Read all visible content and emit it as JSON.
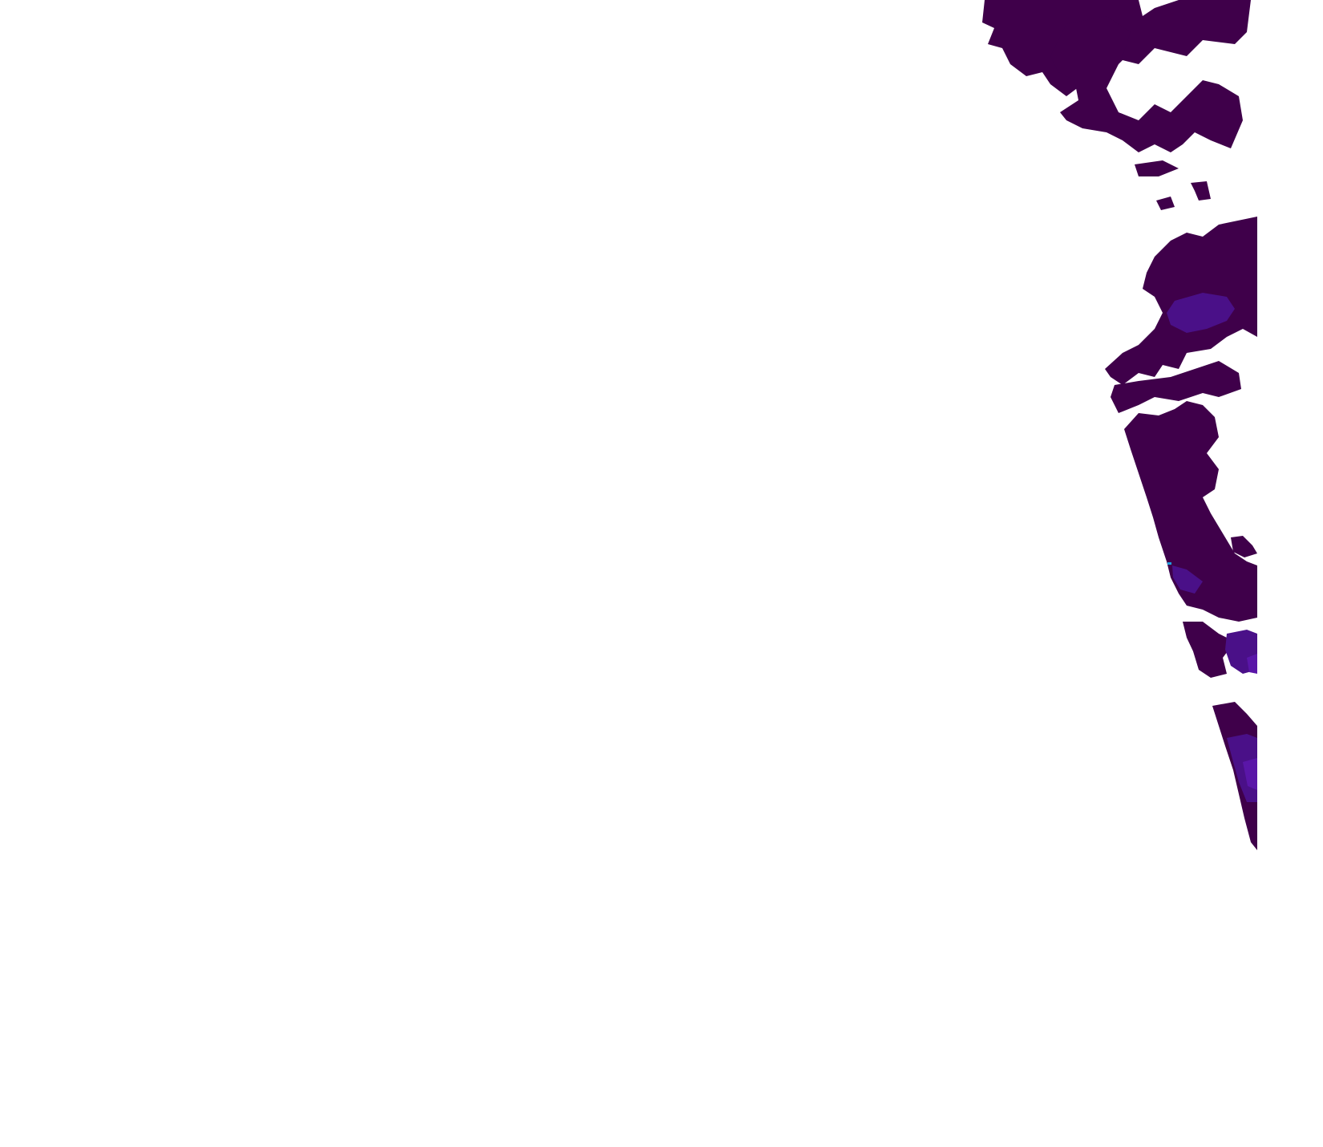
{
  "map": {
    "background_color": "#ffffff",
    "colors": {
      "low": "#3f004a",
      "medium": "#4a1088",
      "high": "#5a16a8",
      "peak": "#1fa0e0"
    }
  }
}
